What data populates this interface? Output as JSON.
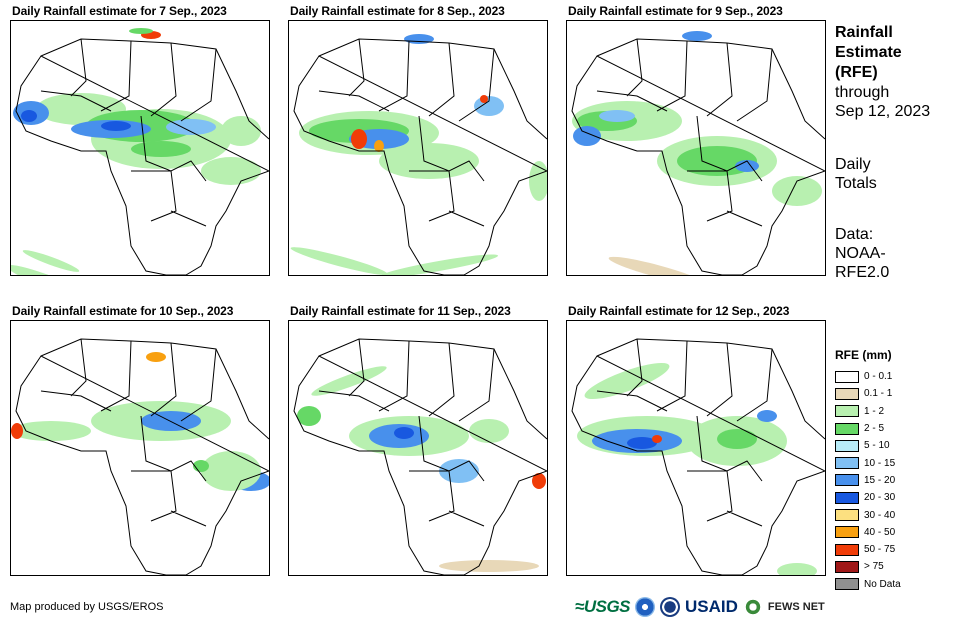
{
  "panels": [
    {
      "title": "Daily Rainfall estimate for 7 Sep., 2023"
    },
    {
      "title": "Daily Rainfall estimate for 8 Sep., 2023"
    },
    {
      "title": "Daily Rainfall estimate for 9 Sep., 2023"
    },
    {
      "title": "Daily Rainfall estimate for 10 Sep., 2023"
    },
    {
      "title": "Daily Rainfall estimate for 11 Sep., 2023"
    },
    {
      "title": "Daily Rainfall estimate for 12 Sep., 2023"
    }
  ],
  "side": {
    "title_lines": [
      "Rainfall",
      "Estimate",
      "(RFE)"
    ],
    "through_label": "through",
    "through_date": "Sep 12, 2023",
    "totals_lines": [
      "Daily",
      "Totals"
    ],
    "data_lines": [
      "Data:",
      "NOAA-",
      "RFE2.0"
    ]
  },
  "legend": {
    "title": "RFE (mm)",
    "items": [
      {
        "label": "0 - 0.1",
        "color": "#ffffff"
      },
      {
        "label": "0.1 - 1",
        "color": "#e8d8b8"
      },
      {
        "label": "1 - 2",
        "color": "#b8f0b0"
      },
      {
        "label": "2 - 5",
        "color": "#66d866"
      },
      {
        "label": "5 - 10",
        "color": "#b8ecf8"
      },
      {
        "label": "10 - 15",
        "color": "#80c0f4"
      },
      {
        "label": "15 - 20",
        "color": "#4890ec"
      },
      {
        "label": "20 - 30",
        "color": "#1858e0"
      },
      {
        "label": "30 - 40",
        "color": "#fce080"
      },
      {
        "label": "40 - 50",
        "color": "#f8a010"
      },
      {
        "label": "50 - 75",
        "color": "#f03c08"
      },
      {
        "label": "> 75",
        "color": "#a01818"
      },
      {
        "label": "No Data",
        "color": "#909090"
      }
    ]
  },
  "credit": "Map produced by USGS/EROS",
  "logos": {
    "usgs": "≈USGS",
    "usaid": "USAID",
    "fews": "FEWS NET"
  }
}
